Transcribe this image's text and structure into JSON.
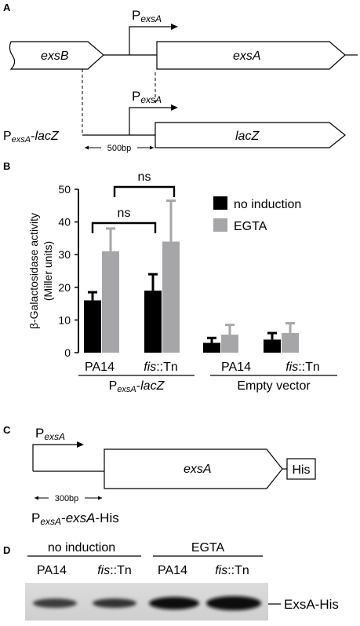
{
  "panels": {
    "a": {
      "label": "A",
      "exsB": "exsB",
      "exsA": "exsA",
      "promoter_top": {
        "p": "P",
        "sub": "exsA"
      },
      "promoter_mid": {
        "p": "P",
        "sub": "exsA"
      },
      "lacZ": "lacZ",
      "construct": {
        "p": "P",
        "sub": "exsA",
        "suffix": "-",
        "gene": "lacZ"
      },
      "scale": "500bp"
    },
    "b": {
      "label": "B",
      "chart_data": {
        "type": "bar",
        "ylabel_line1": "β-Galactosidase activity",
        "ylabel_line2": "(Miller units)",
        "ylim": [
          0,
          50
        ],
        "yticks": [
          "0",
          "10",
          "20",
          "30",
          "40",
          "50"
        ],
        "categories": [
          "PA14",
          "fis::Tn",
          "PA14",
          "fis::Tn"
        ],
        "groups": [
          {
            "p": "P",
            "sub": "exsA",
            "suffix": "-",
            "gene": "lacZ"
          },
          {
            "text": "Empty vector"
          }
        ],
        "series": [
          {
            "name": "no induction",
            "color": "#000000",
            "values": [
              16,
              19,
              3,
              4
            ],
            "errors": [
              2.5,
              5,
              1.5,
              2
            ]
          },
          {
            "name": "EGTA",
            "color": "#a6a6a8",
            "values": [
              31,
              34,
              5.5,
              6
            ],
            "errors": [
              7,
              12.5,
              3,
              3
            ]
          }
        ],
        "annotations": [
          "ns",
          "ns"
        ],
        "legend_position": "top-right"
      }
    },
    "c": {
      "label": "C",
      "promoter": {
        "p": "P",
        "sub": "exsA"
      },
      "exsA": "exsA",
      "tag": "His",
      "scale": "300bp",
      "construct": {
        "p": "P",
        "sub": "exsA",
        "mid": "-",
        "gene": "exsA",
        "suffix": "-His"
      }
    },
    "d": {
      "label": "D",
      "group1": "no induction",
      "group2": "EGTA",
      "lanes": [
        {
          "strain": "PA14"
        },
        {
          "strain_italic": "fis",
          "strain_rest": "::Tn"
        },
        {
          "strain": "PA14"
        },
        {
          "strain_italic": "fis",
          "strain_rest": "::Tn"
        }
      ],
      "band_label": "ExsA-His"
    }
  }
}
